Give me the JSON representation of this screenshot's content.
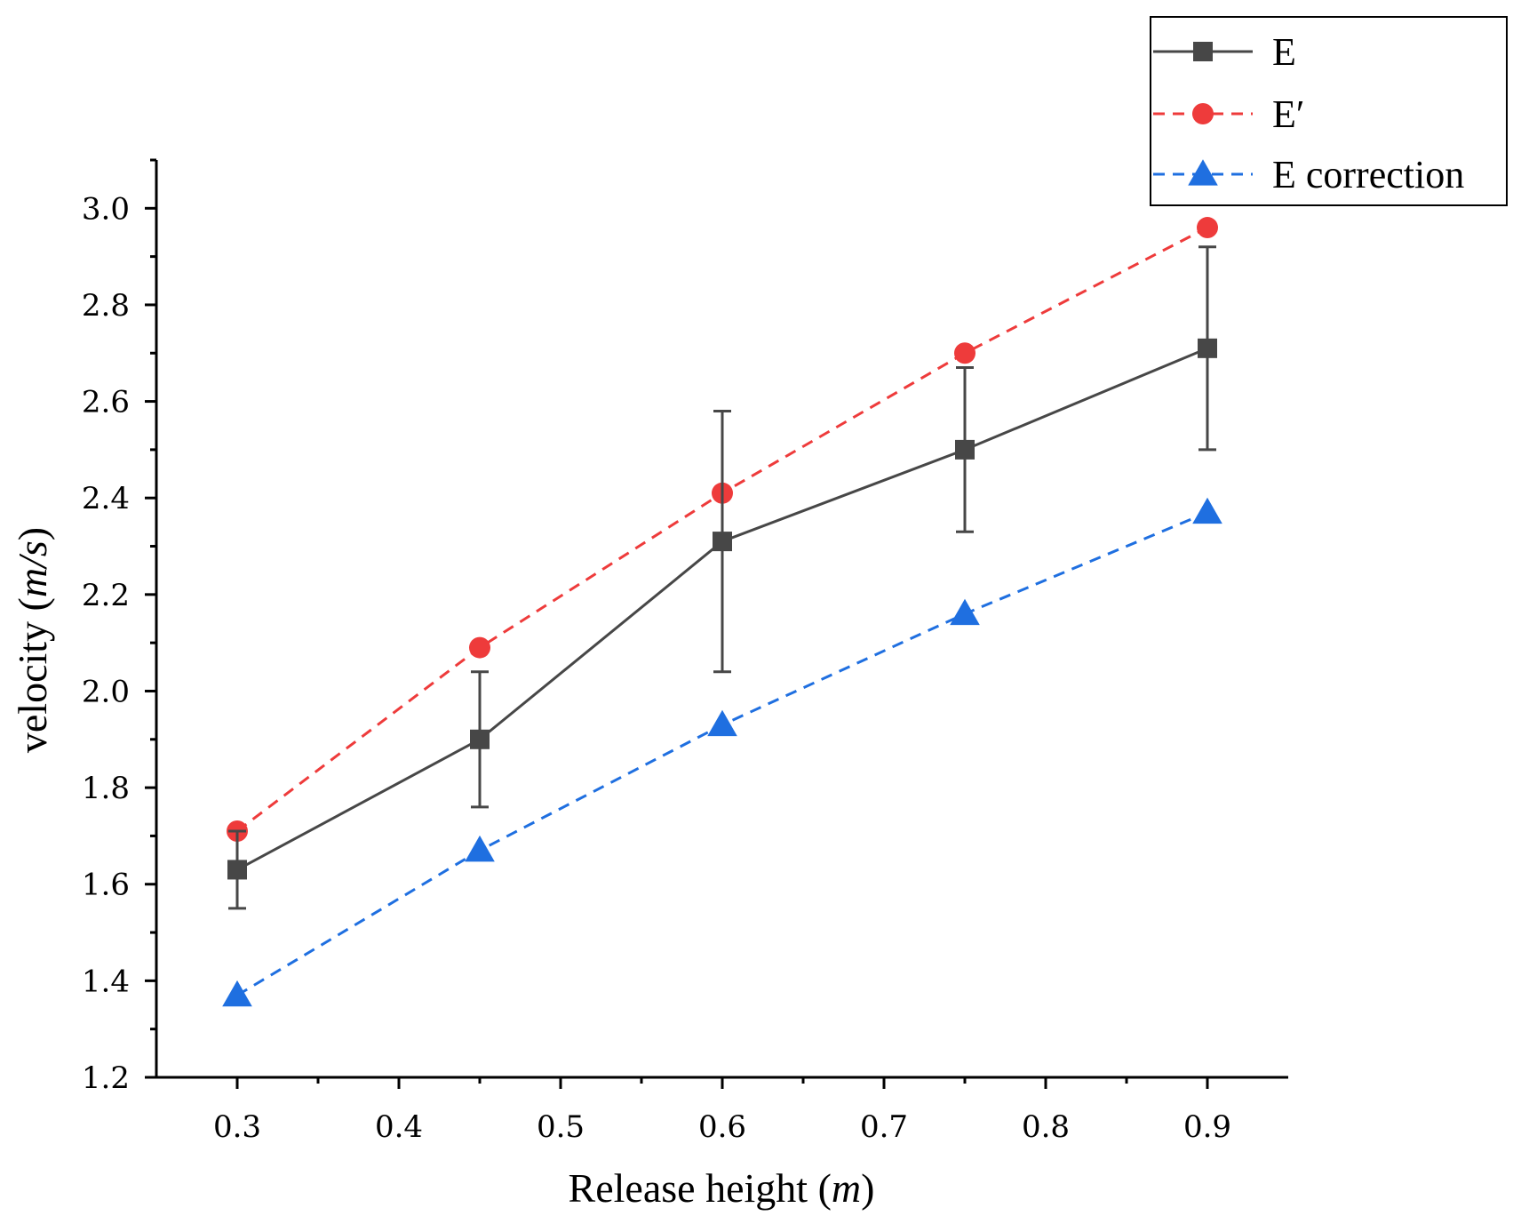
{
  "chart_data": {
    "type": "line",
    "title": "",
    "xlabel": "Release height",
    "xlabel_unit": "m",
    "ylabel": "velocity",
    "ylabel_unit": "m/s",
    "xlim": [
      0.25,
      0.95
    ],
    "ylim": [
      1.2,
      3.1
    ],
    "xticks": [
      0.3,
      0.4,
      0.5,
      0.6,
      0.7,
      0.8,
      0.9
    ],
    "xtick_labels": [
      "0.3",
      "0.4",
      "0.5",
      "0.6",
      "0.7",
      "0.8",
      "0.9"
    ],
    "yticks": [
      1.2,
      1.4,
      1.6,
      1.8,
      2.0,
      2.2,
      2.4,
      2.6,
      2.8,
      3.0
    ],
    "ytick_labels": [
      "1.2",
      "1.4",
      "1.6",
      "1.8",
      "2.0",
      "2.2",
      "2.4",
      "2.6",
      "2.8",
      "3.0"
    ],
    "grid": false,
    "legend_position": "top-right",
    "x": [
      0.3,
      0.45,
      0.6,
      0.75,
      0.9
    ],
    "series": [
      {
        "name": "E",
        "color": "#474747",
        "marker": "square",
        "line_style": "solid",
        "values": [
          1.63,
          1.9,
          2.31,
          2.5,
          2.71
        ],
        "error_upper": [
          1.71,
          2.04,
          2.58,
          2.67,
          2.92
        ],
        "error_lower": [
          1.55,
          1.76,
          2.04,
          2.33,
          2.5
        ]
      },
      {
        "name": "E′",
        "color": "#ee3b3b",
        "marker": "circle",
        "line_style": "dashed",
        "values": [
          1.71,
          2.09,
          2.41,
          2.7,
          2.96
        ]
      },
      {
        "name": "E correction",
        "color": "#1f6fe0",
        "marker": "triangle",
        "line_style": "dashed",
        "values": [
          1.37,
          1.67,
          1.93,
          2.16,
          2.37
        ]
      }
    ]
  }
}
